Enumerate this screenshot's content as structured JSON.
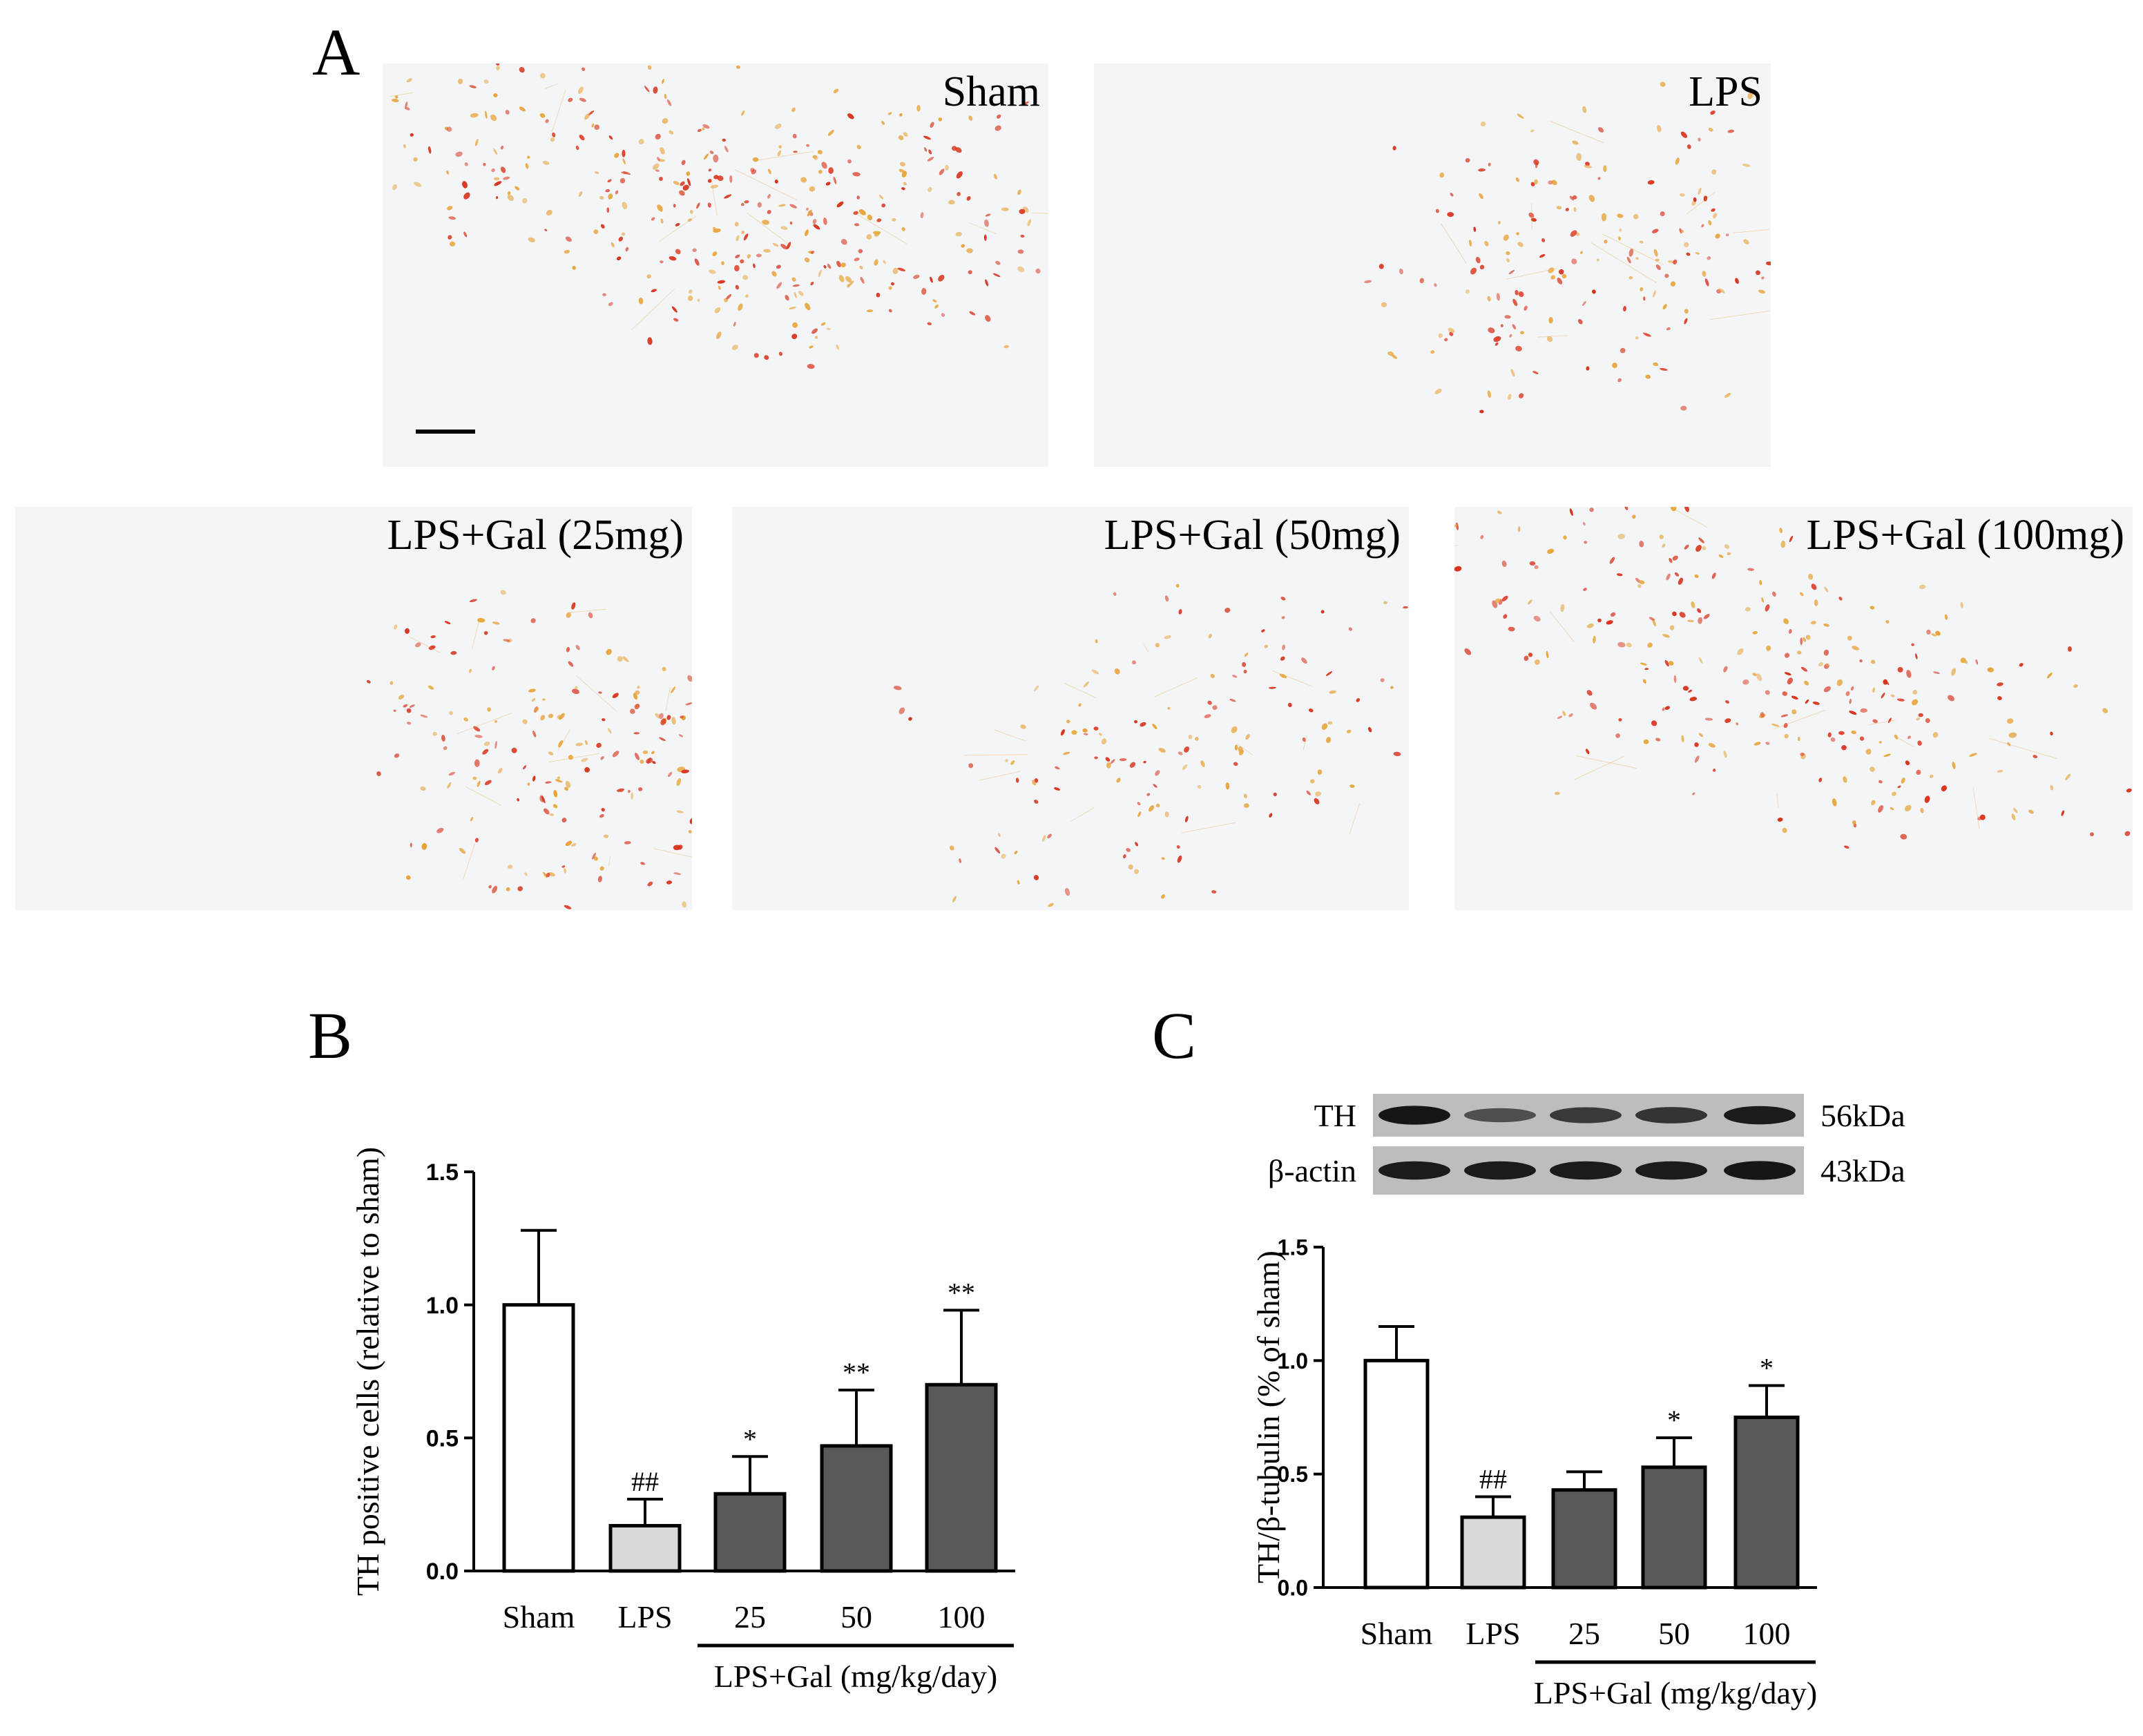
{
  "panel_letters": {
    "a": "A",
    "b": "B",
    "c": "C"
  },
  "micrographs": [
    {
      "label": "Sham",
      "scale_bar": true,
      "stain_level": 0.95
    },
    {
      "label": "LPS",
      "scale_bar": false,
      "stain_level": 0.45
    },
    {
      "label": "LPS+Gal (25mg)",
      "scale_bar": false,
      "stain_level": 0.5
    },
    {
      "label": "LPS+Gal (50mg)",
      "scale_bar": false,
      "stain_level": 0.35
    },
    {
      "label": "LPS+Gal (100mg)",
      "scale_bar": false,
      "stain_level": 0.75
    }
  ],
  "colors": {
    "stain_dark": "#d9331c",
    "stain_light": "#e9a53c",
    "tissue_bg": "#f3f5f6",
    "bar_white": "#ffffff",
    "bar_light": "#d9d9d9",
    "bar_dark": "#595959",
    "blot_bg": "#bdbdbd"
  },
  "western_blot": {
    "bands": [
      {
        "protein": "TH",
        "size": "56kDa",
        "intensities": [
          0.95,
          0.45,
          0.65,
          0.7,
          0.9
        ]
      },
      {
        "protein": "β-actin",
        "size": "43kDa",
        "intensities": [
          0.9,
          0.9,
          0.9,
          0.9,
          0.95
        ]
      }
    ]
  },
  "chart_data": [
    {
      "type": "bar",
      "panel": "B",
      "ylabel": "TH positive cells (relative to sham)",
      "xlabel": "",
      "ylim": [
        0,
        1.5
      ],
      "yticks": [
        "0.0",
        "0.5",
        "1.0",
        "1.5"
      ],
      "categories": [
        "Sham",
        "LPS",
        "25",
        "50",
        "100"
      ],
      "group_label": "LPS+Gal (mg/kg/day)",
      "group_span": [
        "25",
        "100"
      ],
      "values": [
        1.0,
        0.17,
        0.29,
        0.47,
        0.7
      ],
      "errors": [
        0.28,
        0.1,
        0.14,
        0.21,
        0.28
      ],
      "annotations": [
        "",
        "##",
        "*",
        "**",
        "**"
      ],
      "bar_fill": [
        "white",
        "light",
        "dark",
        "dark",
        "dark"
      ]
    },
    {
      "type": "bar",
      "panel": "C",
      "ylabel": "TH/β-tubulin (% of sham)",
      "xlabel": "",
      "ylim": [
        0,
        1.5
      ],
      "yticks": [
        "0.0",
        "0.5",
        "1.0",
        "1.5"
      ],
      "categories": [
        "Sham",
        "LPS",
        "25",
        "50",
        "100"
      ],
      "group_label": "LPS+Gal (mg/kg/day)",
      "group_span": [
        "25",
        "100"
      ],
      "values": [
        1.0,
        0.31,
        0.43,
        0.53,
        0.75
      ],
      "errors": [
        0.15,
        0.09,
        0.08,
        0.13,
        0.14
      ],
      "annotations": [
        "",
        "##",
        "",
        "*",
        "*"
      ],
      "bar_fill": [
        "white",
        "light",
        "dark",
        "dark",
        "dark"
      ]
    }
  ]
}
